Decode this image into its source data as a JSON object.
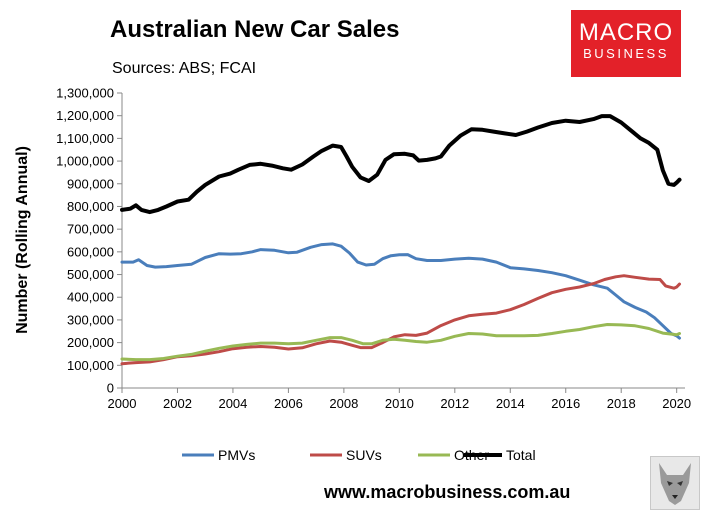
{
  "brand": {
    "logo_line1": "MACRO",
    "logo_line2": "BUSINESS",
    "website": "www.macrobusiness.com.au",
    "logo_color": "#e32129"
  },
  "chart_data": {
    "type": "line",
    "title": "Australian New Car Sales",
    "subtitle": "Sources: ABS; FCAI",
    "xlabel": "",
    "ylabel": "Number (Rolling Annual)",
    "xlim": [
      2000,
      2020.3
    ],
    "ylim": [
      0,
      1300000
    ],
    "x_ticks": [
      2000,
      2002,
      2004,
      2006,
      2008,
      2010,
      2012,
      2014,
      2016,
      2018,
      2020
    ],
    "x_tick_labels": [
      "2000",
      "2002",
      "2004",
      "2006",
      "2008",
      "2010",
      "2012",
      "2014",
      "2016",
      "2018",
      "2020"
    ],
    "y_ticks": [
      0,
      100000,
      200000,
      300000,
      400000,
      500000,
      600000,
      700000,
      800000,
      900000,
      1000000,
      1100000,
      1200000,
      1300000
    ],
    "y_tick_labels": [
      "0",
      "100,000",
      "200,000",
      "300,000",
      "400,000",
      "500,000",
      "600,000",
      "700,000",
      "800,000",
      "900,000",
      "1,000,000",
      "1,100,000",
      "1,200,000",
      "1,300,000"
    ],
    "legend_position": "bottom",
    "series": [
      {
        "name": "PMVs",
        "color": "#4a7ebb",
        "points": [
          [
            2000,
            555000
          ],
          [
            2000.4,
            555000
          ],
          [
            2000.6,
            565000
          ],
          [
            2000.9,
            540000
          ],
          [
            2001.2,
            533000
          ],
          [
            2001.6,
            535000
          ],
          [
            2002,
            540000
          ],
          [
            2002.5,
            545000
          ],
          [
            2003,
            575000
          ],
          [
            2003.5,
            592000
          ],
          [
            2003.9,
            590000
          ],
          [
            2004.3,
            592000
          ],
          [
            2004.7,
            600000
          ],
          [
            2005,
            610000
          ],
          [
            2005.5,
            607000
          ],
          [
            2006,
            596000
          ],
          [
            2006.3,
            598000
          ],
          [
            2006.8,
            620000
          ],
          [
            2007.2,
            632000
          ],
          [
            2007.6,
            635000
          ],
          [
            2007.9,
            625000
          ],
          [
            2008.2,
            595000
          ],
          [
            2008.5,
            555000
          ],
          [
            2008.8,
            542000
          ],
          [
            2009.1,
            545000
          ],
          [
            2009.4,
            570000
          ],
          [
            2009.7,
            583000
          ],
          [
            2010,
            587000
          ],
          [
            2010.3,
            588000
          ],
          [
            2010.6,
            570000
          ],
          [
            2011,
            562000
          ],
          [
            2011.5,
            562000
          ],
          [
            2012,
            568000
          ],
          [
            2012.5,
            572000
          ],
          [
            2013,
            568000
          ],
          [
            2013.5,
            555000
          ],
          [
            2014,
            530000
          ],
          [
            2014.5,
            525000
          ],
          [
            2015,
            518000
          ],
          [
            2015.5,
            508000
          ],
          [
            2016,
            495000
          ],
          [
            2016.5,
            475000
          ],
          [
            2017,
            455000
          ],
          [
            2017.5,
            440000
          ],
          [
            2017.8,
            410000
          ],
          [
            2018.1,
            380000
          ],
          [
            2018.5,
            355000
          ],
          [
            2018.9,
            335000
          ],
          [
            2019.2,
            310000
          ],
          [
            2019.5,
            275000
          ],
          [
            2019.8,
            240000
          ],
          [
            2020,
            230000
          ],
          [
            2020.1,
            220000
          ]
        ]
      },
      {
        "name": "SUVs",
        "color": "#be4b48",
        "points": [
          [
            2000,
            107000
          ],
          [
            2000.5,
            112000
          ],
          [
            2001,
            115000
          ],
          [
            2001.5,
            125000
          ],
          [
            2002,
            138000
          ],
          [
            2002.5,
            142000
          ],
          [
            2003,
            150000
          ],
          [
            2003.5,
            160000
          ],
          [
            2004,
            173000
          ],
          [
            2004.5,
            180000
          ],
          [
            2005,
            183000
          ],
          [
            2005.5,
            180000
          ],
          [
            2006,
            172000
          ],
          [
            2006.5,
            177000
          ],
          [
            2007,
            195000
          ],
          [
            2007.5,
            207000
          ],
          [
            2007.9,
            202000
          ],
          [
            2008.3,
            188000
          ],
          [
            2008.6,
            178000
          ],
          [
            2009,
            178000
          ],
          [
            2009.4,
            200000
          ],
          [
            2009.8,
            225000
          ],
          [
            2010.2,
            235000
          ],
          [
            2010.6,
            232000
          ],
          [
            2011,
            242000
          ],
          [
            2011.5,
            275000
          ],
          [
            2012,
            300000
          ],
          [
            2012.5,
            318000
          ],
          [
            2013,
            325000
          ],
          [
            2013.5,
            330000
          ],
          [
            2014,
            345000
          ],
          [
            2014.5,
            368000
          ],
          [
            2015,
            395000
          ],
          [
            2015.5,
            420000
          ],
          [
            2016,
            435000
          ],
          [
            2016.5,
            445000
          ],
          [
            2017,
            460000
          ],
          [
            2017.4,
            478000
          ],
          [
            2017.8,
            490000
          ],
          [
            2018.1,
            495000
          ],
          [
            2018.5,
            488000
          ],
          [
            2019,
            480000
          ],
          [
            2019.4,
            478000
          ],
          [
            2019.6,
            450000
          ],
          [
            2019.9,
            440000
          ],
          [
            2020,
            445000
          ],
          [
            2020.1,
            458000
          ]
        ]
      },
      {
        "name": "Other",
        "color": "#98b954",
        "points": [
          [
            2000,
            128000
          ],
          [
            2000.5,
            125000
          ],
          [
            2001,
            125000
          ],
          [
            2001.5,
            130000
          ],
          [
            2002,
            140000
          ],
          [
            2002.5,
            148000
          ],
          [
            2003,
            162000
          ],
          [
            2003.5,
            175000
          ],
          [
            2004,
            185000
          ],
          [
            2004.5,
            192000
          ],
          [
            2005,
            198000
          ],
          [
            2005.5,
            198000
          ],
          [
            2006,
            195000
          ],
          [
            2006.5,
            198000
          ],
          [
            2007,
            210000
          ],
          [
            2007.5,
            222000
          ],
          [
            2007.9,
            222000
          ],
          [
            2008.3,
            210000
          ],
          [
            2008.7,
            195000
          ],
          [
            2009,
            195000
          ],
          [
            2009.4,
            210000
          ],
          [
            2009.8,
            215000
          ],
          [
            2010.2,
            210000
          ],
          [
            2010.6,
            205000
          ],
          [
            2011,
            202000
          ],
          [
            2011.5,
            210000
          ],
          [
            2012,
            228000
          ],
          [
            2012.5,
            240000
          ],
          [
            2013,
            238000
          ],
          [
            2013.5,
            230000
          ],
          [
            2014,
            230000
          ],
          [
            2014.5,
            230000
          ],
          [
            2015,
            232000
          ],
          [
            2015.5,
            240000
          ],
          [
            2016,
            250000
          ],
          [
            2016.5,
            258000
          ],
          [
            2017,
            270000
          ],
          [
            2017.5,
            280000
          ],
          [
            2018,
            278000
          ],
          [
            2018.5,
            274000
          ],
          [
            2019,
            262000
          ],
          [
            2019.5,
            242000
          ],
          [
            2020,
            235000
          ],
          [
            2020.1,
            240000
          ]
        ]
      },
      {
        "name": "Total",
        "color": "#000000",
        "points": [
          [
            2000,
            785000
          ],
          [
            2000.3,
            790000
          ],
          [
            2000.5,
            805000
          ],
          [
            2000.7,
            785000
          ],
          [
            2001,
            775000
          ],
          [
            2001.3,
            785000
          ],
          [
            2001.6,
            800000
          ],
          [
            2002,
            822000
          ],
          [
            2002.4,
            830000
          ],
          [
            2002.7,
            865000
          ],
          [
            2003,
            895000
          ],
          [
            2003.5,
            932000
          ],
          [
            2003.9,
            945000
          ],
          [
            2004.2,
            962000
          ],
          [
            2004.6,
            983000
          ],
          [
            2005,
            988000
          ],
          [
            2005.4,
            980000
          ],
          [
            2005.8,
            968000
          ],
          [
            2006.1,
            962000
          ],
          [
            2006.5,
            985000
          ],
          [
            2006.9,
            1020000
          ],
          [
            2007.2,
            1045000
          ],
          [
            2007.6,
            1068000
          ],
          [
            2007.9,
            1062000
          ],
          [
            2008.1,
            1020000
          ],
          [
            2008.3,
            975000
          ],
          [
            2008.6,
            928000
          ],
          [
            2008.9,
            912000
          ],
          [
            2009.2,
            940000
          ],
          [
            2009.5,
            1005000
          ],
          [
            2009.8,
            1030000
          ],
          [
            2010.2,
            1032000
          ],
          [
            2010.5,
            1025000
          ],
          [
            2010.7,
            1002000
          ],
          [
            2011,
            1005000
          ],
          [
            2011.3,
            1012000
          ],
          [
            2011.5,
            1020000
          ],
          [
            2011.8,
            1068000
          ],
          [
            2012.2,
            1112000
          ],
          [
            2012.6,
            1140000
          ],
          [
            2013,
            1138000
          ],
          [
            2013.4,
            1130000
          ],
          [
            2013.8,
            1122000
          ],
          [
            2014.2,
            1115000
          ],
          [
            2014.6,
            1130000
          ],
          [
            2015,
            1148000
          ],
          [
            2015.5,
            1168000
          ],
          [
            2016,
            1178000
          ],
          [
            2016.5,
            1172000
          ],
          [
            2017,
            1185000
          ],
          [
            2017.3,
            1198000
          ],
          [
            2017.6,
            1198000
          ],
          [
            2018,
            1170000
          ],
          [
            2018.3,
            1140000
          ],
          [
            2018.7,
            1100000
          ],
          [
            2019,
            1080000
          ],
          [
            2019.3,
            1050000
          ],
          [
            2019.5,
            960000
          ],
          [
            2019.7,
            900000
          ],
          [
            2019.9,
            895000
          ],
          [
            2020,
            905000
          ],
          [
            2020.1,
            918000
          ]
        ]
      }
    ]
  }
}
